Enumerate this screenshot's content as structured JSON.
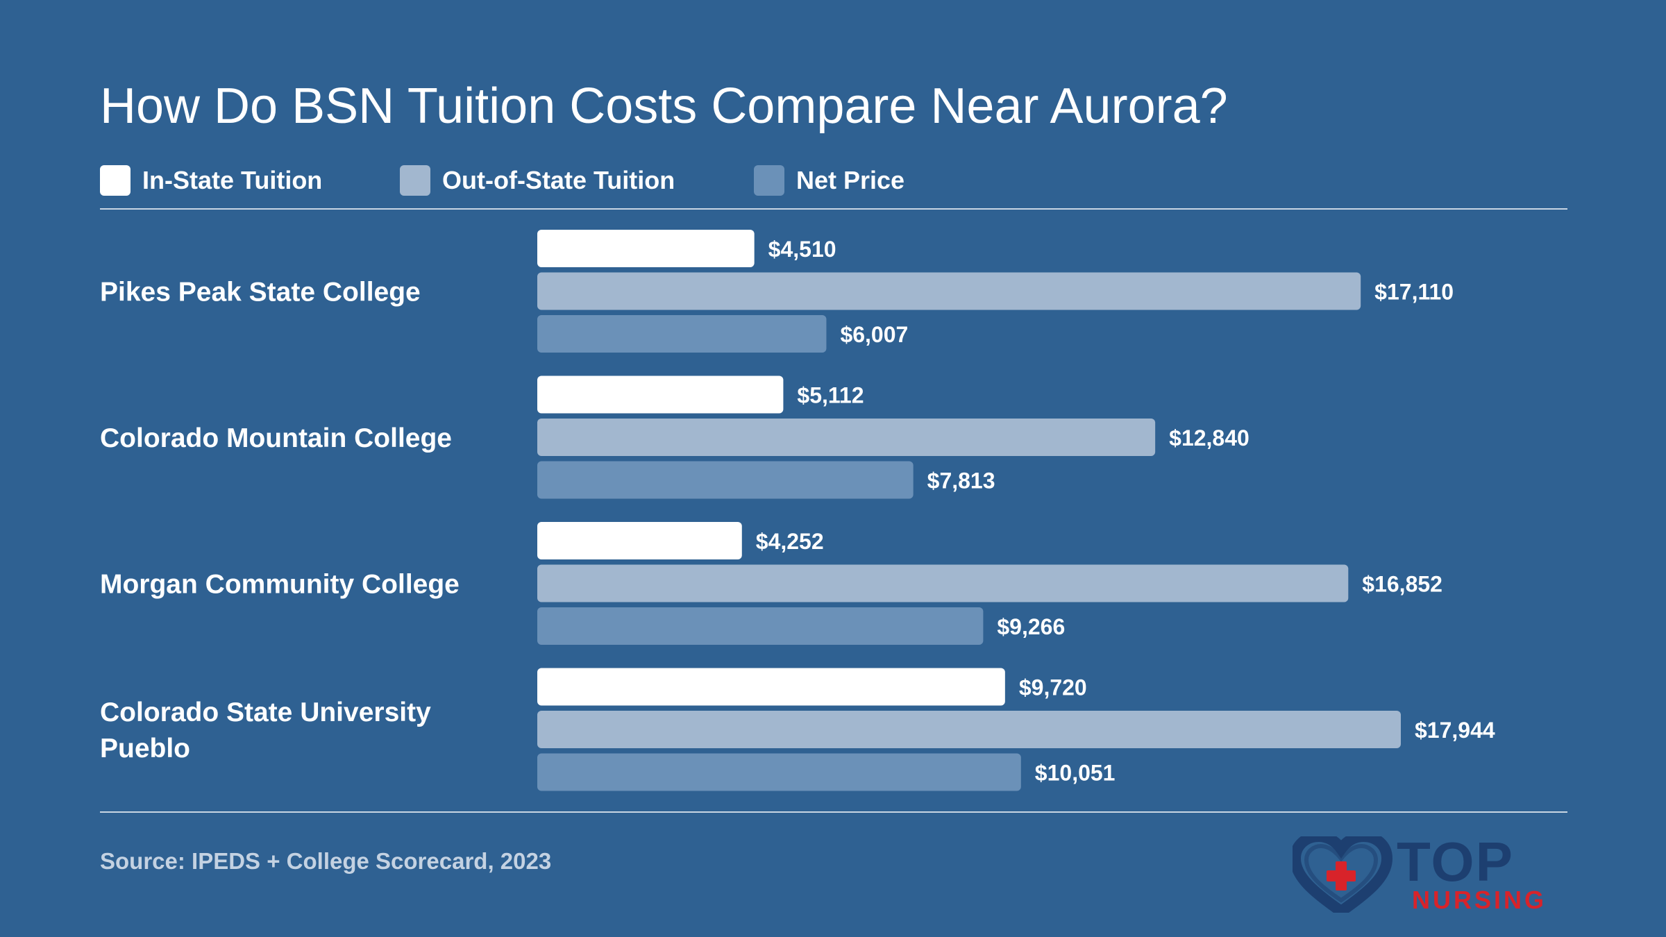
{
  "chart_data": {
    "type": "bar",
    "orientation": "horizontal",
    "title": "How Do BSN Tuition Costs Compare Near Aurora?",
    "categories": [
      [
        "Pikes Peak State College"
      ],
      [
        "Colorado Mountain College"
      ],
      [
        "Morgan Community College"
      ],
      [
        "Colorado State University",
        "Pueblo"
      ]
    ],
    "series": [
      {
        "name": "In-State Tuition",
        "color": "#ffffff",
        "values": [
          4510,
          5112,
          4252,
          9720
        ],
        "labels": [
          "$4,510",
          "$5,112",
          "$4,252",
          "$9,720"
        ]
      },
      {
        "name": "Out-of-State Tuition",
        "color": "#a2b7cf",
        "values": [
          17110,
          12840,
          16852,
          17944
        ],
        "labels": [
          "$17,110",
          "$12,840",
          "$16,852",
          "$17,944"
        ]
      },
      {
        "name": "Net Price",
        "color": "#6b91b8",
        "values": [
          6007,
          7813,
          9266,
          10051
        ],
        "labels": [
          "$6,007",
          "$7,813",
          "$9,266",
          "$10,051"
        ]
      }
    ],
    "xlim": [
      0,
      17944
    ],
    "legend_position": "top-left",
    "grid": false
  },
  "source": "Source: IPEDS + College Scorecard, 2023",
  "logo": {
    "line1": "TOP",
    "line2": "NURSING",
    "icon": "heart-plus-icon",
    "color_dark": "#1d3f70",
    "color_red": "#d8232a"
  }
}
